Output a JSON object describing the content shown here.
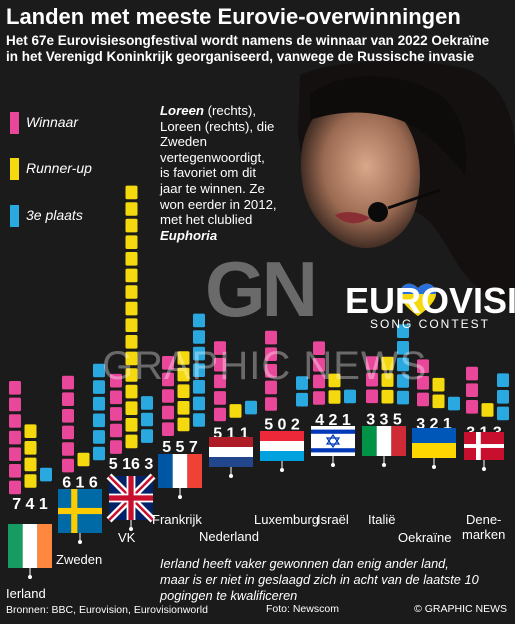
{
  "header": {
    "title": "Landen met meeste Eurovie-overwinningen",
    "subtitle_line1": "Het 67e Eurovisiesongfestival wordt namens de winnaar van 2022 Oekraïne",
    "subtitle_line2": "in het Verenigd Koninkrijk georganiseerd, vanwege de Russische invasie"
  },
  "note": {
    "name": "Loreen",
    "line_a": "(rechts),",
    "body": "Loreen (rechts), die Zweden vertegenwoordigt, is favoriet om dit jaar te winnen. Ze won eerder in 2012, met het clublied",
    "song": "Euphoria"
  },
  "logo": {
    "name": "EUROVISION",
    "sub": "SONG CONTEST"
  },
  "watermark": {
    "letters": "GN",
    "text": "GRAPHIC NEWS"
  },
  "footnote": "Ierland heeft vaker gewonnen dan enig ander land, maar is er niet in geslaagd zich in acht van de laatste 10 pogingen te kwalificeren",
  "footer": {
    "sources": "Bronnen: BBC, Eurovision, Eurovisionworld",
    "photo": "Foto: Newscom",
    "credit": "© GRAPHIC NEWS"
  },
  "colors": {
    "winner": "#e8479a",
    "runnerup": "#f5d90f",
    "third": "#29a9e0",
    "background": "#1b1b1b"
  },
  "chart_data": {
    "type": "bar",
    "series": [
      {
        "name": "Winnaar",
        "color": "#e8479a"
      },
      {
        "name": "Runner-up",
        "color": "#f5d90f"
      },
      {
        "name": "3e plaats",
        "color": "#29a9e0"
      }
    ],
    "countries": [
      {
        "name": "Ierland",
        "values": [
          7,
          4,
          1
        ],
        "label": "7 4 1"
      },
      {
        "name": "Zweden",
        "values": [
          6,
          1,
          6
        ],
        "label": "6 1 6"
      },
      {
        "name": "VK",
        "values": [
          5,
          16,
          3
        ],
        "label": "5 16 3"
      },
      {
        "name": "Frankrijk",
        "values": [
          5,
          5,
          7
        ],
        "label": "5 5 7"
      },
      {
        "name": "Nederland",
        "values": [
          5,
          1,
          1
        ],
        "label": "5 1 1"
      },
      {
        "name": "Luxemburg",
        "values": [
          5,
          0,
          2
        ],
        "label": "5 0 2"
      },
      {
        "name": "Israël",
        "values": [
          4,
          2,
          1
        ],
        "label": "4 2 1"
      },
      {
        "name": "Italië",
        "values": [
          3,
          3,
          5
        ],
        "label": "3 3 5"
      },
      {
        "name": "Oekraïne",
        "values": [
          3,
          2,
          1
        ],
        "label": "3 2 1"
      },
      {
        "name": "Denemarken",
        "values": [
          3,
          1,
          3
        ],
        "label": "3 1 3"
      }
    ]
  }
}
